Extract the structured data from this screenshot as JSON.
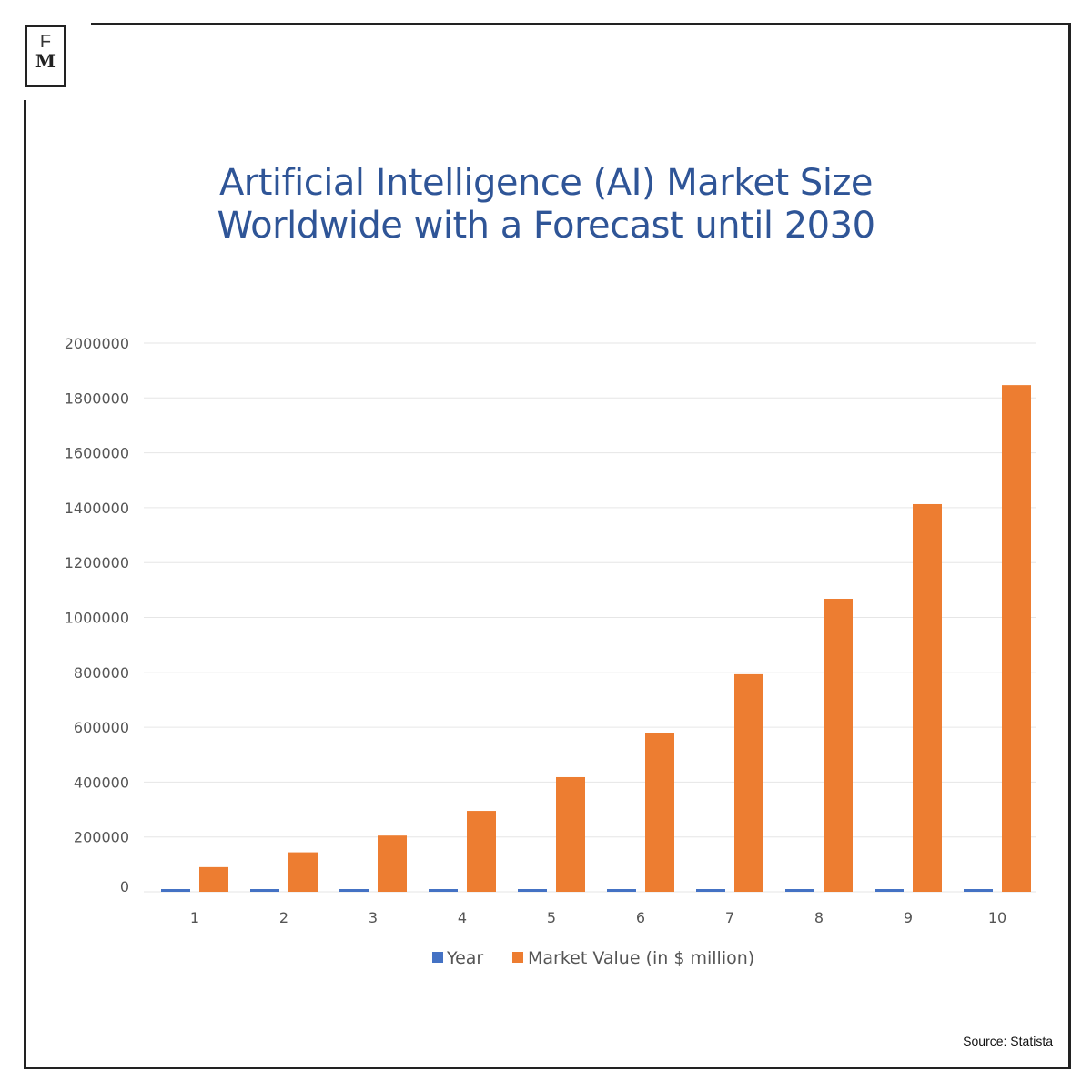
{
  "logo": {
    "text": "FM"
  },
  "source": "Source: Statista",
  "colors": {
    "year": "#4472c4",
    "market": "#ed7d31",
    "title": "#2f5597"
  },
  "chart_data": {
    "type": "bar",
    "title": "Artificial Intelligence (AI) Market Size Worldwide with a Forecast until 2030",
    "xlabel": "",
    "ylabel": "",
    "categories": [
      "1",
      "2",
      "3",
      "4",
      "5",
      "6",
      "7",
      "8",
      "9",
      "10"
    ],
    "ylim": [
      0,
      2000000
    ],
    "yticks": [
      "0",
      "200000",
      "400000",
      "600000",
      "800000",
      "1000000",
      "1200000",
      "1400000",
      "1600000",
      "1800000",
      "2000000"
    ],
    "grid": true,
    "legend": "bottom",
    "series": [
      {
        "name": "Year",
        "values": [
          2021,
          2022,
          2023,
          2024,
          2025,
          2026,
          2027,
          2028,
          2029,
          2030
        ]
      },
      {
        "name": "Market Value (in $ million)",
        "values": [
          90000,
          144000,
          205000,
          295000,
          418000,
          580000,
          793000,
          1068000,
          1413000,
          1847000
        ]
      }
    ]
  }
}
